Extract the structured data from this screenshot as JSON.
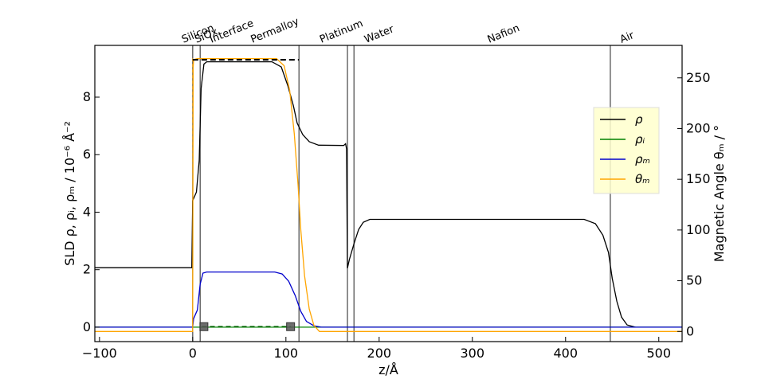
{
  "chart_data": {
    "type": "line",
    "xlabel": "z/Å",
    "ylabel": "SLD  ρ,  ρᵢ,  ρₘ / 10⁻⁶ Å⁻²",
    "y2label": "Magnetic Angle θₘ / °",
    "xlim": [
      -105,
      525
    ],
    "ylim": [
      -0.5,
      9.8
    ],
    "y2lim": [
      -10,
      282
    ],
    "x_ticks": [
      -100,
      0,
      100,
      200,
      300,
      400,
      500
    ],
    "x_tick_labels": [
      "−100",
      "0",
      "100",
      "200",
      "300",
      "400",
      "500"
    ],
    "y_ticks": [
      0,
      2,
      4,
      6,
      8
    ],
    "y_tick_labels": [
      "0",
      "2",
      "4",
      "6",
      "8"
    ],
    "y2_ticks": [
      0,
      50,
      100,
      150,
      200,
      250
    ],
    "y2_tick_labels": [
      "0",
      "50",
      "100",
      "150",
      "200",
      "250"
    ],
    "legend_position": "right",
    "legend_background": "#ffffcc",
    "layers": [
      {
        "label": "Silicon",
        "x": -10
      },
      {
        "label": "SiOx",
        "x": 4
      },
      {
        "label": "Interface",
        "x": 20
      },
      {
        "label": "Permalloy",
        "x": 64
      },
      {
        "label": "Platinum",
        "x": 138
      },
      {
        "label": "Water",
        "x": 186
      },
      {
        "label": "Nafion",
        "x": 318
      },
      {
        "label": "Air",
        "x": 460
      }
    ],
    "boundaries": [
      0,
      8,
      114,
      166,
      173,
      448
    ],
    "series": [
      {
        "name": "ρ",
        "color": "#000000",
        "points": [
          [
            -105,
            2.07
          ],
          [
            -1,
            2.07
          ],
          [
            0,
            4.4
          ],
          [
            4,
            4.7
          ],
          [
            7,
            5.8
          ],
          [
            9,
            8.3
          ],
          [
            12,
            9.15
          ],
          [
            15,
            9.23
          ],
          [
            85,
            9.23
          ],
          [
            95,
            9.05
          ],
          [
            102,
            8.4
          ],
          [
            108,
            7.7
          ],
          [
            112,
            7.1
          ],
          [
            118,
            6.7
          ],
          [
            125,
            6.45
          ],
          [
            135,
            6.33
          ],
          [
            162,
            6.32
          ],
          [
            164,
            6.38
          ],
          [
            165,
            6.2
          ],
          [
            166,
            2.05
          ],
          [
            168,
            2.35
          ],
          [
            173,
            2.9
          ],
          [
            178,
            3.4
          ],
          [
            183,
            3.65
          ],
          [
            190,
            3.75
          ],
          [
            420,
            3.75
          ],
          [
            432,
            3.6
          ],
          [
            440,
            3.2
          ],
          [
            446,
            2.6
          ],
          [
            450,
            1.7
          ],
          [
            455,
            0.9
          ],
          [
            460,
            0.35
          ],
          [
            466,
            0.08
          ],
          [
            475,
            0.0
          ]
        ]
      },
      {
        "name": "ρᵢ",
        "color": "#008000",
        "points": [
          [
            -105,
            0.0
          ],
          [
            525,
            0.0
          ]
        ]
      },
      {
        "name": "ρₘ",
        "color": "#0000cc",
        "points": [
          [
            -105,
            0.0
          ],
          [
            0,
            0.0
          ],
          [
            1,
            0.3
          ],
          [
            5,
            0.6
          ],
          [
            8,
            1.5
          ],
          [
            11,
            1.88
          ],
          [
            15,
            1.92
          ],
          [
            88,
            1.92
          ],
          [
            96,
            1.85
          ],
          [
            103,
            1.6
          ],
          [
            110,
            1.1
          ],
          [
            116,
            0.55
          ],
          [
            122,
            0.2
          ],
          [
            130,
            0.05
          ],
          [
            138,
            0.0
          ],
          [
            525,
            0.0
          ]
        ]
      },
      {
        "name": "θₘ",
        "color": "#ffa500",
        "y_axis": "right",
        "points": [
          [
            -105,
            0.0
          ],
          [
            0,
            0.0
          ],
          [
            0.5,
            260
          ],
          [
            1,
            268
          ],
          [
            5,
            269
          ],
          [
            90,
            269
          ],
          [
            98,
            262
          ],
          [
            104,
            238
          ],
          [
            109,
            195
          ],
          [
            113,
            145
          ],
          [
            116,
            100
          ],
          [
            120,
            55
          ],
          [
            125,
            22
          ],
          [
            130,
            6
          ],
          [
            136,
            0.0
          ],
          [
            525,
            0.0
          ]
        ]
      }
    ],
    "control_points": [
      [
        12,
        0.02
      ],
      [
        105,
        0.02
      ]
    ]
  }
}
